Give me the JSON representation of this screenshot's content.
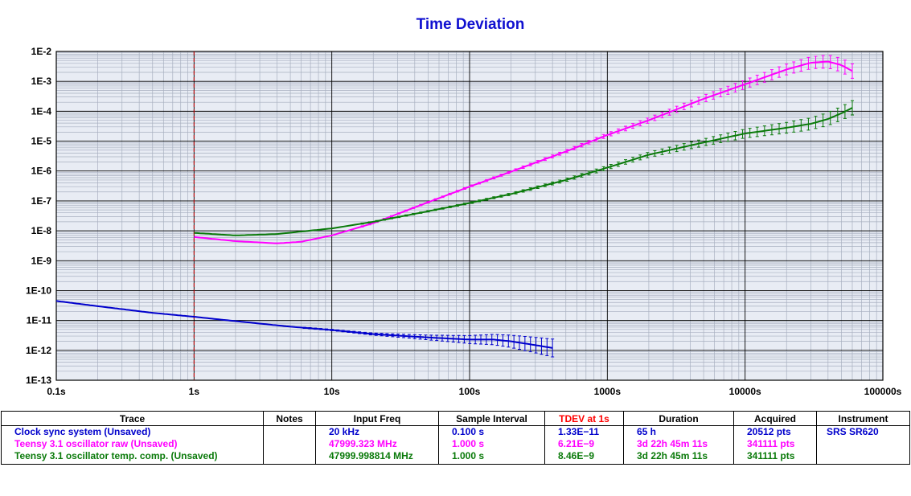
{
  "chart_data": {
    "type": "line",
    "title": "Time Deviation",
    "xscale": "log",
    "yscale": "log",
    "xlim": [
      0.1,
      100000
    ],
    "ylim": [
      1e-13,
      0.01
    ],
    "grid": true,
    "x_tick_labels": [
      "0.1s",
      "1s",
      "10s",
      "100s",
      "1000s",
      "10000s",
      "100000s"
    ],
    "y_tick_labels": [
      "1E-13",
      "1E-12",
      "1E-11",
      "1E-10",
      "1E-9",
      "1E-8",
      "1E-7",
      "1E-6",
      "1E-5",
      "1E-4",
      "1E-3",
      "1E-2"
    ],
    "marker_line": {
      "x": 1,
      "color": "#cc0000",
      "style": "dashed"
    },
    "series": [
      {
        "name": "Clock sync system (Unsaved)",
        "color": "#0000cc",
        "x": [
          0.1,
          0.2,
          0.5,
          1,
          2,
          5,
          10,
          20,
          50,
          100,
          150,
          200,
          300,
          400
        ],
        "y": [
          4.5e-11,
          3e-11,
          1.8e-11,
          1.33e-11,
          9.5e-12,
          6.2e-12,
          4.8e-12,
          3.5e-12,
          2.7e-12,
          2.3e-12,
          2.3e-12,
          2e-12,
          1.5e-12,
          1.2e-12
        ]
      },
      {
        "name": "Teensy 3.1 oscillator raw (Unsaved)",
        "color": "#ff00ff",
        "x": [
          1,
          2,
          4,
          6,
          10,
          20,
          50,
          100,
          200,
          500,
          1000,
          2000,
          5000,
          10000,
          20000,
          30000,
          40000,
          50000,
          60000
        ],
        "y": [
          6.2e-09,
          4.5e-09,
          3.8e-09,
          4.3e-09,
          7e-09,
          1.8e-08,
          9e-08,
          3e-07,
          9.5e-07,
          4.5e-06,
          1.6e-05,
          5e-05,
          0.00026,
          0.0008,
          0.0025,
          0.0042,
          0.0046,
          0.0035,
          0.0022
        ]
      },
      {
        "name": "Teensy 3.1 oscillator temp. comp. (Unsaved)",
        "color": "#0a7a0a",
        "x": [
          1,
          2,
          4,
          10,
          20,
          50,
          100,
          200,
          500,
          1000,
          2000,
          5000,
          10000,
          20000,
          30000,
          40000,
          50000,
          60000
        ],
        "y": [
          8.5e-09,
          7e-09,
          7.8e-09,
          1.2e-08,
          2e-08,
          4.5e-08,
          8.5e-08,
          1.7e-07,
          5e-07,
          1.3e-06,
          3.5e-06,
          9e-06,
          1.8e-05,
          2.8e-05,
          3.8e-05,
          5.5e-05,
          8.5e-05,
          0.00013
        ]
      }
    ]
  },
  "table": {
    "headers": [
      "Trace",
      "Notes",
      "Input Freq",
      "Sample Interval",
      "TDEV at 1s",
      "Duration",
      "Acquired",
      "Instrument"
    ],
    "rows": [
      {
        "trace": "Clock sync system (Unsaved)",
        "notes": "",
        "input_freq": "20 kHz",
        "sample_interval": "0.100 s",
        "tdev": "1.33E−11",
        "duration": "65 h",
        "acquired": "20512 pts",
        "instrument": "SRS SR620",
        "color": "#0000cc"
      },
      {
        "trace": "Teensy 3.1 oscillator raw (Unsaved)",
        "notes": "",
        "input_freq": "47999.323 MHz",
        "sample_interval": "1.000 s",
        "tdev": "6.21E−9",
        "duration": "3d 22h 45m 11s",
        "acquired": "341111 pts",
        "instrument": "",
        "color": "#ff00ff"
      },
      {
        "trace": "Teensy 3.1 oscillator temp. comp. (Unsaved)",
        "notes": "",
        "input_freq": "47999.998814 MHz",
        "sample_interval": "1.000 s",
        "tdev": "8.46E−9",
        "duration": "3d 22h 45m 11s",
        "acquired": "341111 pts",
        "instrument": "",
        "color": "#0a7a0a"
      }
    ]
  }
}
